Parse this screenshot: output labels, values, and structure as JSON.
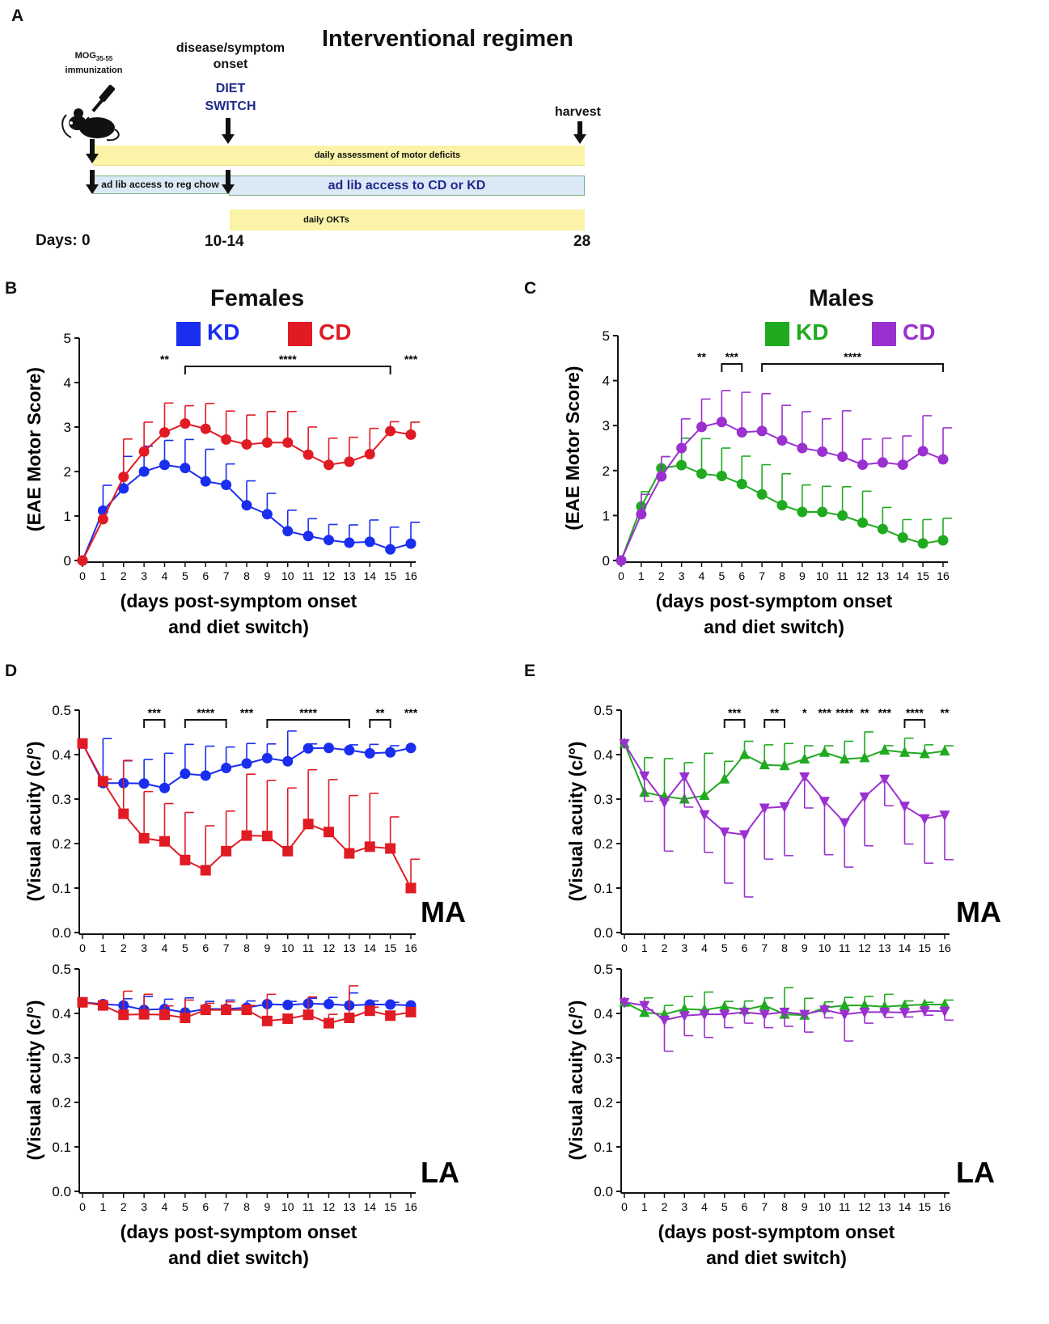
{
  "panel_labels": [
    "A",
    "B",
    "C",
    "D",
    "E"
  ],
  "regimen": {
    "title": "Interventional regimen",
    "immunization_main": "MOG",
    "immunization_sub": "35-55",
    "immunization_word": "immunization",
    "onset_line1": "disease/symptom",
    "onset_line2": "onset",
    "diet_line1": "DIET",
    "diet_line2": "SWITCH",
    "harvest": "harvest",
    "bar_motor": "daily assessment of motor deficits",
    "bar_chow": "ad lib access to reg chow",
    "bar_diet": "ad lib access to CD or KD",
    "bar_okt": "daily OKTs",
    "days_label": "Days: 0",
    "day_onset": "10-14",
    "day_end": "28",
    "colors": {
      "yellow": "#fbf3a7",
      "blue_bar": "#dbe9f6",
      "navy": "#1f2a8a"
    }
  },
  "legends": {
    "females": {
      "title": "Females",
      "kd": "KD",
      "cd": "CD",
      "kd_color": "#1a2ef0",
      "cd_color": "#e01b24"
    },
    "males": {
      "title": "Males",
      "kd": "KD",
      "cd": "CD",
      "kd_color": "#1faa1f",
      "cd_color": "#9b30d0"
    }
  },
  "chart_data": [
    {
      "id": "B",
      "type": "line",
      "title": "Females",
      "ylabel": "(EAE Motor Score)",
      "xlabel": [
        "(days post-symptom onset",
        "and diet switch)"
      ],
      "ylim": [
        0,
        5
      ],
      "yticks": [
        0,
        1,
        2,
        3,
        4,
        5
      ],
      "x": [
        0,
        1,
        2,
        3,
        4,
        5,
        6,
        7,
        8,
        9,
        10,
        11,
        12,
        13,
        14,
        15,
        16
      ],
      "series": [
        {
          "name": "KD",
          "color": "#1a2ef0",
          "marker": "circle",
          "values": [
            0,
            1.12,
            1.62,
            2.0,
            2.15,
            2.08,
            1.78,
            1.7,
            1.24,
            1.04,
            0.66,
            0.55,
            0.46,
            0.4,
            0.42,
            0.25,
            0.38
          ],
          "errors": [
            0,
            0.57,
            0.72,
            0.57,
            0.55,
            0.64,
            0.72,
            0.47,
            0.55,
            0.47,
            0.47,
            0.39,
            0.35,
            0.4,
            0.49,
            0.5,
            0.48
          ]
        },
        {
          "name": "CD",
          "color": "#e01b24",
          "marker": "circle",
          "values": [
            0,
            0.93,
            1.88,
            2.45,
            2.88,
            3.08,
            2.96,
            2.72,
            2.61,
            2.65,
            2.65,
            2.38,
            2.15,
            2.22,
            2.39,
            2.91,
            2.83
          ],
          "errors": [
            0,
            0,
            0.85,
            0.66,
            0.66,
            0.4,
            0.57,
            0.64,
            0.66,
            0.7,
            0.7,
            0.62,
            0.6,
            0.55,
            0.58,
            0.21,
            0.28
          ]
        }
      ],
      "significance": [
        {
          "label": "**",
          "x": 4
        },
        {
          "label": "****",
          "from": 5,
          "to": 15
        },
        {
          "label": "***",
          "x": 16
        }
      ]
    },
    {
      "id": "C",
      "type": "line",
      "title": "Males",
      "ylabel": "(EAE Motor Score)",
      "xlabel": [
        "(days post-symptom onset",
        "and diet switch)"
      ],
      "ylim": [
        0,
        5
      ],
      "yticks": [
        0,
        1,
        2,
        3,
        4,
        5
      ],
      "x": [
        0,
        1,
        2,
        3,
        4,
        5,
        6,
        7,
        8,
        9,
        10,
        11,
        12,
        13,
        14,
        15,
        16
      ],
      "series": [
        {
          "name": "KD",
          "color": "#1faa1f",
          "marker": "circle",
          "values": [
            0,
            1.2,
            2.05,
            2.12,
            1.93,
            1.88,
            1.7,
            1.47,
            1.23,
            1.08,
            1.08,
            1.0,
            0.84,
            0.7,
            0.51,
            0.38,
            0.45
          ],
          "errors": [
            0,
            0.33,
            0.26,
            0.6,
            0.78,
            0.62,
            0.62,
            0.66,
            0.7,
            0.6,
            0.57,
            0.64,
            0.7,
            0.48,
            0.4,
            0.53,
            0.49
          ]
        },
        {
          "name": "CD",
          "color": "#9b30d0",
          "marker": "circle",
          "values": [
            0,
            1.03,
            1.87,
            2.5,
            2.97,
            3.08,
            2.85,
            2.88,
            2.67,
            2.5,
            2.42,
            2.31,
            2.13,
            2.18,
            2.13,
            2.43,
            2.25
          ],
          "errors": [
            0,
            0.44,
            0.44,
            0.65,
            0.62,
            0.7,
            0.89,
            0.83,
            0.78,
            0.81,
            0.73,
            1.02,
            0.57,
            0.54,
            0.64,
            0.79,
            0.7
          ]
        }
      ],
      "significance": [
        {
          "label": "**",
          "x": 4
        },
        {
          "label": "***",
          "from": 5,
          "to": 6
        },
        {
          "label": "****",
          "from": 7,
          "to": 16
        }
      ]
    },
    {
      "id": "D-MA",
      "type": "line",
      "tag": "MA",
      "ylabel": "(Visual acuity (c/°)",
      "ylim": [
        0,
        0.5
      ],
      "yticks": [
        0.0,
        0.1,
        0.2,
        0.3,
        0.4,
        0.5
      ],
      "x": [
        0,
        1,
        2,
        3,
        4,
        5,
        6,
        7,
        8,
        9,
        10,
        11,
        12,
        13,
        14,
        15,
        16
      ],
      "series": [
        {
          "name": "KD",
          "color": "#1a2ef0",
          "marker": "circle",
          "values": [
            0.425,
            0.336,
            0.336,
            0.335,
            0.325,
            0.357,
            0.353,
            0.37,
            0.38,
            0.392,
            0.385,
            0.414,
            0.415,
            0.41,
            0.403,
            0.405,
            0.415
          ],
          "errors": [
            0,
            0.1,
            0.05,
            0.054,
            0.078,
            0.066,
            0.066,
            0.047,
            0.045,
            0.032,
            0.068,
            0.01,
            0,
            0.012,
            0.02,
            0.015,
            0
          ]
        },
        {
          "name": "CD",
          "color": "#e01b24",
          "marker": "square",
          "values": [
            0.425,
            0.34,
            0.267,
            0.212,
            0.205,
            0.163,
            0.14,
            0.183,
            0.218,
            0.217,
            0.183,
            0.244,
            0.226,
            0.178,
            0.193,
            0.189,
            0.1
          ],
          "errors": [
            0,
            0.005,
            0.12,
            0.105,
            0.085,
            0.107,
            0.1,
            0.09,
            0.138,
            0.125,
            0.142,
            0.122,
            0.118,
            0.13,
            0.12,
            0.071,
            0.065
          ]
        }
      ],
      "significance": [
        {
          "label": "***",
          "from": 3,
          "to": 4
        },
        {
          "label": "****",
          "from": 5,
          "to": 7
        },
        {
          "label": "***",
          "x": 8
        },
        {
          "label": "****",
          "from": 9,
          "to": 13
        },
        {
          "label": "**",
          "from": 14,
          "to": 15
        },
        {
          "label": "***",
          "x": 16
        }
      ]
    },
    {
      "id": "D-LA",
      "type": "line",
      "tag": "LA",
      "ylabel": "(Visual acuity (c/°)",
      "xlabel": [
        "(days post-symptom onset",
        "and diet switch)"
      ],
      "ylim": [
        0,
        0.5
      ],
      "yticks": [
        0.0,
        0.1,
        0.2,
        0.3,
        0.4,
        0.5
      ],
      "x": [
        0,
        1,
        2,
        3,
        4,
        5,
        6,
        7,
        8,
        9,
        10,
        11,
        12,
        13,
        14,
        15,
        16
      ],
      "series": [
        {
          "name": "KD",
          "color": "#1a2ef0",
          "marker": "circle",
          "values": [
            0.425,
            0.421,
            0.418,
            0.408,
            0.41,
            0.402,
            0.41,
            0.41,
            0.413,
            0.421,
            0.419,
            0.422,
            0.421,
            0.418,
            0.42,
            0.42,
            0.418
          ],
          "errors": [
            0,
            0,
            0.015,
            0.03,
            0.022,
            0.033,
            0.017,
            0.02,
            0.015,
            0,
            0.008,
            0.012,
            0.015,
            0.028,
            0.008,
            0.005,
            0
          ]
        },
        {
          "name": "CD",
          "color": "#e01b24",
          "marker": "square",
          "values": [
            0.425,
            0.418,
            0.397,
            0.398,
            0.397,
            0.39,
            0.408,
            0.408,
            0.408,
            0.383,
            0.388,
            0.397,
            0.378,
            0.39,
            0.406,
            0.395,
            0.403
          ],
          "errors": [
            0,
            0,
            0.053,
            0.045,
            0.02,
            0.04,
            0.015,
            0.018,
            0.01,
            0.06,
            0,
            0.04,
            0.02,
            0.072,
            0.008,
            0,
            0
          ]
        }
      ],
      "significance": []
    },
    {
      "id": "E-MA",
      "type": "line",
      "tag": "MA",
      "ylabel": "(Visual acuity (c/°)",
      "ylim": [
        0,
        0.5
      ],
      "yticks": [
        0.0,
        0.1,
        0.2,
        0.3,
        0.4,
        0.5
      ],
      "x": [
        0,
        1,
        2,
        3,
        4,
        5,
        6,
        7,
        8,
        9,
        10,
        11,
        12,
        13,
        14,
        15,
        16
      ],
      "series": [
        {
          "name": "KD",
          "color": "#1faa1f",
          "marker": "triangle-up",
          "values": [
            0.425,
            0.315,
            0.306,
            0.3,
            0.308,
            0.345,
            0.4,
            0.377,
            0.375,
            0.39,
            0.405,
            0.39,
            0.393,
            0.41,
            0.405,
            0.402,
            0.408
          ],
          "errors": [
            0,
            0.078,
            0.085,
            0.082,
            0.095,
            0.04,
            0.03,
            0.045,
            0.05,
            0.03,
            0.015,
            0.04,
            0.058,
            0.01,
            0.032,
            0.02,
            0.012
          ]
        },
        {
          "name": "CD",
          "color": "#9b30d0",
          "marker": "triangle-down",
          "values": [
            0.425,
            0.352,
            0.293,
            0.35,
            0.265,
            0.226,
            0.22,
            0.28,
            0.283,
            0.35,
            0.295,
            0.247,
            0.305,
            0.345,
            0.284,
            0.256,
            0.264
          ],
          "errors": [
            0,
            0.057,
            0.11,
            0.068,
            0.085,
            0.115,
            0.14,
            0.115,
            0.11,
            0.07,
            0.12,
            0.1,
            0.11,
            0.06,
            0.085,
            0.1,
            0.1
          ]
        }
      ],
      "significance": [
        {
          "label": "***",
          "from": 5,
          "to": 6
        },
        {
          "label": "**",
          "from": 7,
          "to": 8
        },
        {
          "label": "*",
          "x": 9
        },
        {
          "label": "***",
          "x": 10
        },
        {
          "label": "****",
          "x": 11
        },
        {
          "label": "**",
          "x": 12
        },
        {
          "label": "***",
          "x": 13
        },
        {
          "label": "****",
          "from": 14,
          "to": 15
        },
        {
          "label": "**",
          "x": 16
        }
      ]
    },
    {
      "id": "E-LA",
      "type": "line",
      "tag": "LA",
      "ylabel": "(Visual acuity (c/°)",
      "xlabel": [
        "(days post-symptom onset",
        "and diet switch)"
      ],
      "ylim": [
        0,
        0.5
      ],
      "yticks": [
        0.0,
        0.1,
        0.2,
        0.3,
        0.4,
        0.5
      ],
      "x": [
        0,
        1,
        2,
        3,
        4,
        5,
        6,
        7,
        8,
        9,
        10,
        11,
        12,
        13,
        14,
        15,
        16
      ],
      "series": [
        {
          "name": "KD",
          "color": "#1faa1f",
          "marker": "triangle-up",
          "values": [
            0.425,
            0.402,
            0.398,
            0.41,
            0.408,
            0.415,
            0.408,
            0.418,
            0.398,
            0.396,
            0.413,
            0.418,
            0.418,
            0.415,
            0.418,
            0.42,
            0.42
          ],
          "errors": [
            0,
            0.033,
            0.02,
            0.028,
            0.04,
            0.012,
            0.02,
            0.017,
            0.06,
            0.038,
            0.013,
            0.018,
            0.02,
            0.028,
            0.01,
            0.005,
            0.01
          ]
        },
        {
          "name": "CD",
          "color": "#9b30d0",
          "marker": "triangle-down",
          "values": [
            0.425,
            0.418,
            0.385,
            0.395,
            0.398,
            0.398,
            0.403,
            0.398,
            0.403,
            0.398,
            0.408,
            0.398,
            0.403,
            0.403,
            0.402,
            0.406,
            0.405
          ],
          "errors": [
            0,
            0.01,
            0.07,
            0.045,
            0.052,
            0.03,
            0.025,
            0.03,
            0.032,
            0.04,
            0.018,
            0.06,
            0.025,
            0.012,
            0.01,
            0.01,
            0.02
          ]
        }
      ],
      "significance": []
    }
  ]
}
